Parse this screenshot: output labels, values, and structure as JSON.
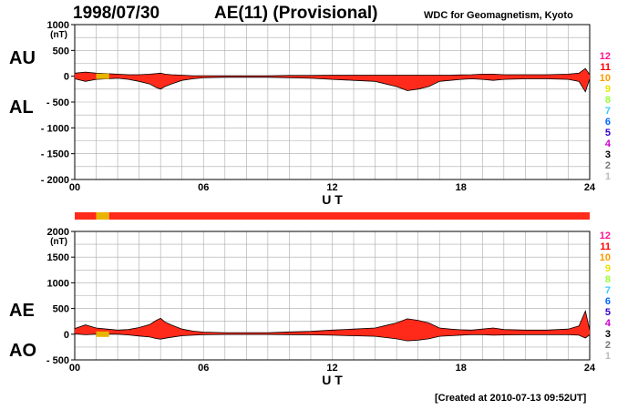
{
  "header": {
    "date": "1998/07/30",
    "title": "AE(11) (Provisional)",
    "source": "WDC for Geomagnetism, Kyoto"
  },
  "footer": {
    "created": "[Created at 2010-07-13 09:52UT]"
  },
  "colors": {
    "fill": "#ff2a1a",
    "outline": "#000000",
    "grid": "#aaaaaa",
    "stations_10_band": "#e8b400"
  },
  "station_legend": [
    {
      "label": "12",
      "color": "#ff1493"
    },
    {
      "label": "11",
      "color": "#ff0000"
    },
    {
      "label": "10",
      "color": "#ff9900"
    },
    {
      "label": "9",
      "color": "#e6e600"
    },
    {
      "label": "8",
      "color": "#99ff33"
    },
    {
      "label": "7",
      "color": "#33ccff"
    },
    {
      "label": "6",
      "color": "#0066ff"
    },
    {
      "label": "5",
      "color": "#3300cc"
    },
    {
      "label": "4",
      "color": "#cc00cc"
    },
    {
      "label": "3",
      "color": "#000000"
    },
    {
      "label": "2",
      "color": "#777777"
    },
    {
      "label": "1",
      "color": "#bbbbbb"
    }
  ],
  "chart_data": [
    {
      "type": "area",
      "name": "AU/AL panel",
      "series_labels": [
        "AU",
        "AL"
      ],
      "unit_label": "(nT)",
      "xlabel": "U T",
      "xlim": [
        0,
        24
      ],
      "ylim": [
        -2000,
        1000
      ],
      "x_ticks": [
        0,
        6,
        12,
        18,
        24
      ],
      "x_tick_labels": [
        "00",
        "06",
        "12",
        "18",
        "24"
      ],
      "y_ticks": [
        1000,
        500,
        0,
        -500,
        -1000,
        -1500,
        -2000
      ],
      "y_tick_labels": [
        "1000",
        "500",
        "0",
        "- 500",
        "- 1000",
        "- 1500",
        "- 2000"
      ],
      "grid": true,
      "x": [
        0,
        0.5,
        1,
        1.5,
        2,
        2.5,
        3,
        3.5,
        3.8,
        4,
        4.2,
        4.5,
        5,
        5.5,
        6,
        7,
        8,
        9,
        10,
        11,
        12,
        13,
        14,
        14.5,
        15,
        15.5,
        16,
        16.5,
        17,
        17.5,
        18,
        18.5,
        19,
        19.5,
        20,
        21,
        22,
        23,
        23.5,
        23.8,
        24
      ],
      "AU": [
        60,
        80,
        60,
        50,
        40,
        30,
        30,
        40,
        50,
        60,
        40,
        30,
        20,
        10,
        10,
        10,
        10,
        10,
        15,
        15,
        20,
        20,
        20,
        20,
        20,
        20,
        20,
        20,
        20,
        20,
        25,
        30,
        40,
        40,
        30,
        30,
        30,
        40,
        60,
        150,
        30
      ],
      "AL": [
        -50,
        -100,
        -60,
        -50,
        -40,
        -60,
        -100,
        -150,
        -220,
        -250,
        -200,
        -150,
        -80,
        -50,
        -30,
        -20,
        -20,
        -20,
        -30,
        -40,
        -60,
        -80,
        -100,
        -150,
        -200,
        -280,
        -250,
        -200,
        -100,
        -80,
        -60,
        -50,
        -60,
        -80,
        -60,
        -50,
        -50,
        -60,
        -100,
        -300,
        -50
      ],
      "stations_band": [
        {
          "from": 0,
          "to": 1,
          "stations": 11
        },
        {
          "from": 1,
          "to": 1.6,
          "stations": 10
        },
        {
          "from": 1.6,
          "to": 24,
          "stations": 11
        }
      ]
    },
    {
      "type": "area",
      "name": "AE/AO panel",
      "series_labels": [
        "AE",
        "AO"
      ],
      "unit_label": "(nT)",
      "xlabel": "U T",
      "xlim": [
        0,
        24
      ],
      "ylim": [
        -500,
        2000
      ],
      "x_ticks": [
        0,
        6,
        12,
        18,
        24
      ],
      "x_tick_labels": [
        "00",
        "06",
        "12",
        "18",
        "24"
      ],
      "y_ticks": [
        2000,
        1500,
        1000,
        500,
        0,
        -500
      ],
      "y_tick_labels": [
        "2000",
        "1500",
        "1000",
        "500",
        "0",
        "- 500"
      ],
      "grid": true,
      "x": [
        0,
        0.5,
        1,
        1.5,
        2,
        2.5,
        3,
        3.5,
        3.8,
        4,
        4.2,
        4.5,
        5,
        5.5,
        6,
        7,
        8,
        9,
        10,
        11,
        12,
        13,
        14,
        14.5,
        15,
        15.5,
        16,
        16.5,
        17,
        17.5,
        18,
        18.5,
        19,
        19.5,
        20,
        21,
        22,
        23,
        23.5,
        23.8,
        24
      ],
      "AE": [
        110,
        180,
        120,
        100,
        80,
        90,
        130,
        190,
        270,
        310,
        240,
        180,
        100,
        60,
        40,
        30,
        30,
        30,
        45,
        55,
        80,
        100,
        120,
        170,
        220,
        300,
        270,
        220,
        120,
        100,
        85,
        80,
        100,
        120,
        90,
        80,
        80,
        100,
        160,
        450,
        80
      ],
      "AO": [
        5,
        -10,
        0,
        0,
        0,
        -15,
        -35,
        -55,
        -85,
        -95,
        -80,
        -60,
        -30,
        -20,
        -10,
        -5,
        -5,
        -5,
        -8,
        -13,
        -20,
        -30,
        -40,
        -65,
        -90,
        -130,
        -115,
        -90,
        -40,
        -30,
        -18,
        -10,
        -10,
        -20,
        -15,
        -10,
        -10,
        -10,
        -20,
        -75,
        -10
      ],
      "stations_band": [
        {
          "from": 0,
          "to": 1,
          "stations": 11
        },
        {
          "from": 1,
          "to": 1.6,
          "stations": 10
        },
        {
          "from": 1.6,
          "to": 24,
          "stations": 11
        }
      ]
    }
  ]
}
